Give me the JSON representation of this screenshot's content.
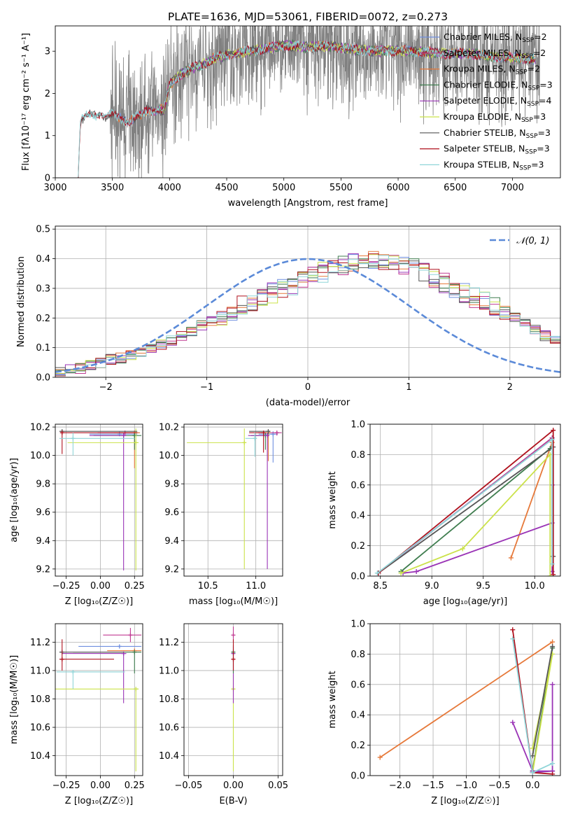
{
  "figure_title": "PLATE=1636, MJD=53061, FIBERID=0072, z=0.273",
  "colors": {
    "chabrier_miles": "#6f8fe0",
    "salpeter_miles": "#c03a92",
    "kroupa_miles": "#e6793a",
    "chabrier_elodie": "#3f7d4f",
    "salpeter_elodie": "#9a34b6",
    "kroupa_elodie": "#cbe24a",
    "chabrier_stelib": "#555555",
    "salpeter_stelib": "#b0121e",
    "kroupa_stelib": "#8fd5d8",
    "gaussian": "#5b8ad8",
    "data": "#808080",
    "grid": "#b0b0b0"
  },
  "chart_data": [
    {
      "id": "spectrum",
      "type": "line",
      "title": "PLATE=1636, MJD=53061, FIBERID=0072, z=0.273",
      "xlabel": "wavelength [Angstrom, rest frame]",
      "ylabel": "Flux [fλ10⁻¹⁷ erg cm⁻² s⁻¹ A⁻¹]",
      "xlim": [
        3000,
        7420
      ],
      "ylim": [
        0,
        3.6
      ],
      "xticks": [
        3000,
        3500,
        4000,
        4500,
        5000,
        5500,
        6000,
        6500,
        7000
      ],
      "yticks": [
        0,
        1,
        2,
        3
      ],
      "grid": false,
      "legend_position": "top-right",
      "legend": [
        {
          "label": "Chabrier MILES, N",
          "sub": "SSP",
          "tail": "=2",
          "color_key": "chabrier_miles"
        },
        {
          "label": "Salpeter MILES, N",
          "sub": "SSP",
          "tail": "=2",
          "color_key": "salpeter_miles"
        },
        {
          "label": "Kroupa MILES, N",
          "sub": "SSP",
          "tail": "=2",
          "color_key": "kroupa_miles"
        },
        {
          "label": "Chabrier ELODIE, N",
          "sub": "SSP",
          "tail": "=3",
          "color_key": "chabrier_elodie"
        },
        {
          "label": "Salpeter ELODIE, N",
          "sub": "SSP",
          "tail": "=4",
          "color_key": "salpeter_elodie"
        },
        {
          "label": "Kroupa ELODIE, N",
          "sub": "SSP",
          "tail": "=3",
          "color_key": "kroupa_elodie"
        },
        {
          "label": "Chabrier STELIB, N",
          "sub": "SSP",
          "tail": "=3",
          "color_key": "chabrier_stelib"
        },
        {
          "label": "Salpeter STELIB, N",
          "sub": "SSP",
          "tail": "=3",
          "color_key": "salpeter_stelib"
        },
        {
          "label": "Kroupa STELIB, N",
          "sub": "SSP",
          "tail": "=3",
          "color_key": "kroupa_stelib"
        }
      ],
      "continuum": {
        "x": [
          3200,
          3220,
          3260,
          3300,
          3350,
          3400,
          3450,
          3500,
          3550,
          3600,
          3650,
          3700,
          3750,
          3800,
          3850,
          3900,
          3950,
          4000,
          4100,
          4200,
          4300,
          4400,
          4500,
          4600,
          4700,
          4800,
          4900,
          5000,
          5200,
          5400,
          5600,
          5800,
          6000,
          6200,
          6400,
          6600,
          6800,
          7000,
          7200
        ],
        "y": [
          0.0,
          1.35,
          1.45,
          1.5,
          1.48,
          1.52,
          1.45,
          1.5,
          1.42,
          1.38,
          1.35,
          1.45,
          1.45,
          1.6,
          1.6,
          1.62,
          1.6,
          2.2,
          2.45,
          2.6,
          2.7,
          2.85,
          2.9,
          2.95,
          3.0,
          3.05,
          3.1,
          3.15,
          3.1,
          3.12,
          3.05,
          3.0,
          3.02,
          2.98,
          2.95,
          2.95,
          2.88,
          2.85,
          2.8
        ]
      },
      "data_noise_start": 3480,
      "data_noise_amplitude": 1.4
    },
    {
      "id": "residuals",
      "type": "line",
      "xlabel": "(data-model)/error",
      "ylabel": "Normed distribution",
      "xlim": [
        -2.5,
        2.5
      ],
      "ylim": [
        0,
        0.51
      ],
      "xticks": [
        -2,
        -1,
        0,
        1,
        2
      ],
      "yticks": [
        0.0,
        0.1,
        0.2,
        0.3,
        0.4,
        0.5
      ],
      "grid": true,
      "legend_position": "top-right",
      "legend": [
        {
          "label": "𝒩(0, 1)",
          "color_key": "gaussian"
        }
      ],
      "gaussian": {
        "mean": 0,
        "sigma": 1
      },
      "histogram": {
        "bin_width": 0.1,
        "x_start": -2.5,
        "base_values": [
          0.018,
          0.025,
          0.03,
          0.04,
          0.048,
          0.06,
          0.065,
          0.075,
          0.085,
          0.095,
          0.11,
          0.125,
          0.14,
          0.155,
          0.175,
          0.19,
          0.21,
          0.225,
          0.24,
          0.255,
          0.265,
          0.285,
          0.3,
          0.31,
          0.33,
          0.34,
          0.355,
          0.37,
          0.375,
          0.39,
          0.4,
          0.395,
          0.39,
          0.385,
          0.38,
          0.37,
          0.35,
          0.335,
          0.32,
          0.3,
          0.285,
          0.27,
          0.255,
          0.235,
          0.215,
          0.2,
          0.18,
          0.16,
          0.14,
          0.125
        ]
      }
    },
    {
      "id": "age_vs_Z",
      "type": "scatter",
      "xlabel": "Z [log₁₀(Z/Z☉)]",
      "ylabel": "age  [log₁₀(age/yr)]",
      "xlim": [
        -0.33,
        0.31
      ],
      "ylim": [
        9.15,
        10.22
      ],
      "xticks": [
        -0.25,
        0.0,
        0.25
      ],
      "xtick_labels": [
        "−0.25",
        "0.00",
        "0.25"
      ],
      "yticks": [
        9.2,
        9.4,
        9.6,
        9.8,
        10.0,
        10.2
      ],
      "grid": true,
      "points": [
        {
          "k": "chabrier_miles",
          "x": 0.14,
          "y": 10.15,
          "xl": 0.22,
          "xh": 0.13,
          "yl": 0.0,
          "yh": 0.02
        },
        {
          "k": "salpeter_miles",
          "x": 0.18,
          "y": 10.16,
          "xl": 0.2,
          "xh": 0.1,
          "yl": 0.0,
          "yh": 0.01
        },
        {
          "k": "kroupa_miles",
          "x": 0.25,
          "y": 10.16,
          "xl": 0.15,
          "xh": 0.04,
          "yl": 0.25,
          "yh": 0.01
        },
        {
          "k": "chabrier_elodie",
          "x": 0.25,
          "y": 10.14,
          "xl": 0.3,
          "xh": 0.05,
          "yl": 0.1,
          "yh": 0.02
        },
        {
          "k": "salpeter_elodie",
          "x": 0.17,
          "y": 10.14,
          "xl": 0.25,
          "xh": 0.02,
          "yl": 0.95,
          "yh": 0.02
        },
        {
          "k": "kroupa_elodie",
          "x": 0.26,
          "y": 10.09,
          "xl": 0.5,
          "xh": 0.02,
          "yl": 0.9,
          "yh": 0.1
        },
        {
          "k": "chabrier_stelib",
          "x": -0.28,
          "y": 10.17,
          "xl": 0.02,
          "xh": 0.55,
          "yl": 0.02,
          "yh": 0.01
        },
        {
          "k": "salpeter_stelib",
          "x": -0.28,
          "y": 10.16,
          "xl": 0.01,
          "xh": 0.55,
          "yl": 0.15,
          "yh": 0.01
        },
        {
          "k": "kroupa_stelib",
          "x": -0.2,
          "y": 10.12,
          "xl": 0.1,
          "xh": 0.45,
          "yl": 0.12,
          "yh": 0.04
        }
      ]
    },
    {
      "id": "age_vs_mass",
      "type": "scatter",
      "xlabel": "mass [log₁₀(M/M☉)]",
      "xlim": [
        10.25,
        11.28
      ],
      "ylim": [
        9.15,
        10.22
      ],
      "xticks": [
        10.5,
        11.0
      ],
      "xtick_labels": [
        "10.5",
        "11.0"
      ],
      "yticks": [
        9.2,
        9.4,
        9.6,
        9.8,
        10.0,
        10.2
      ],
      "grid": true,
      "points": [
        {
          "k": "chabrier_miles",
          "x": 11.18,
          "y": 10.15,
          "xl": 0.15,
          "xh": 0.05,
          "yl": 0.2,
          "yh": 0.02
        },
        {
          "k": "salpeter_miles",
          "x": 11.22,
          "y": 10.16,
          "xl": 0.2,
          "xh": 0.05,
          "yl": 0.02,
          "yh": 0.01
        },
        {
          "k": "kroupa_miles",
          "x": 11.13,
          "y": 10.16,
          "xl": 0.1,
          "xh": 0.02,
          "yl": 0.2,
          "yh": 0.01
        },
        {
          "k": "chabrier_elodie",
          "x": 11.1,
          "y": 10.14,
          "xl": 0.15,
          "xh": 0.03,
          "yl": 0.1,
          "yh": 0.02
        },
        {
          "k": "salpeter_elodie",
          "x": 11.12,
          "y": 10.14,
          "xl": 0.2,
          "xh": 0.02,
          "yl": 0.94,
          "yh": 0.02
        },
        {
          "k": "kroupa_elodie",
          "x": 10.88,
          "y": 10.09,
          "xl": 0.6,
          "xh": 0.02,
          "yl": 0.89,
          "yh": 0.1
        },
        {
          "k": "chabrier_stelib",
          "x": 11.13,
          "y": 10.17,
          "xl": 0.2,
          "xh": 0.02,
          "yl": 0.02,
          "yh": 0.01
        },
        {
          "k": "salpeter_stelib",
          "x": 11.08,
          "y": 10.16,
          "xl": 0.15,
          "xh": 0.01,
          "yl": 0.14,
          "yh": 0.01
        },
        {
          "k": "kroupa_stelib",
          "x": 10.99,
          "y": 10.12,
          "xl": 0.1,
          "xh": 0.02,
          "yl": 0.13,
          "yh": 0.04
        }
      ]
    },
    {
      "id": "weight_vs_age",
      "type": "line",
      "xlabel": "age  [log₁₀(age/yr)]",
      "ylabel": "mass weight",
      "xlim": [
        8.4,
        10.25
      ],
      "ylim": [
        0,
        1.0
      ],
      "xticks": [
        8.5,
        9.0,
        9.5,
        10.0
      ],
      "xtick_labels": [
        "8.5",
        "9.0",
        "9.5",
        "10.0"
      ],
      "yticks": [
        0.0,
        0.2,
        0.4,
        0.6,
        0.8,
        1.0
      ],
      "grid": true,
      "series": [
        {
          "k": "kroupa_miles",
          "x": [
            9.77,
            10.17
          ],
          "y": [
            0.12,
            0.88
          ]
        },
        {
          "k": "chabrier_miles",
          "x": [
            8.48,
            10.17
          ],
          "y": [
            0.02,
            0.91
          ]
        },
        {
          "k": "salpeter_miles",
          "x": [
            8.48,
            10.17
          ],
          "y": [
            0.02,
            0.91
          ]
        },
        {
          "k": "chabrier_elodie",
          "x": [
            8.7,
            10.15
          ],
          "y": [
            0.03,
            0.84
          ]
        },
        {
          "k": "salpeter_elodie",
          "x": [
            8.72,
            8.85,
            10.17,
            10.17,
            10.17
          ],
          "y": [
            0.02,
            0.03,
            0.35,
            0.6,
            0.03
          ]
        },
        {
          "k": "kroupa_elodie",
          "x": [
            8.7,
            9.3,
            10.15,
            10.15
          ],
          "y": [
            0.02,
            0.18,
            0.8,
            0.0
          ]
        },
        {
          "k": "chabrier_stelib",
          "x": [
            8.48,
            10.18,
            10.18
          ],
          "y": [
            0.02,
            0.85,
            0.13
          ]
        },
        {
          "k": "salpeter_stelib",
          "x": [
            8.48,
            10.18,
            10.18
          ],
          "y": [
            0.02,
            0.96,
            0.01
          ]
        },
        {
          "k": "kroupa_stelib",
          "x": [
            8.47,
            10.17,
            10.17
          ],
          "y": [
            0.02,
            0.9,
            0.08
          ]
        }
      ]
    },
    {
      "id": "mass_vs_Z",
      "type": "scatter",
      "xlabel": "Z [log₁₀(Z/Z☉)]",
      "ylabel": "mass [log₁₀(M/M☉)]",
      "xlim": [
        -0.33,
        0.31
      ],
      "ylim": [
        10.26,
        11.33
      ],
      "xticks": [
        -0.25,
        0.0,
        0.25
      ],
      "xtick_labels": [
        "−0.25",
        "0.00",
        "0.25"
      ],
      "yticks": [
        10.4,
        10.6,
        10.8,
        11.0,
        11.2
      ],
      "grid": true,
      "points": [
        {
          "k": "chabrier_miles",
          "x": 0.14,
          "y": 11.17,
          "xl": 0.3,
          "xh": 0.16,
          "yl": 0.0,
          "yh": 0.0
        },
        {
          "k": "salpeter_miles",
          "x": 0.22,
          "y": 11.25,
          "xl": 0.2,
          "xh": 0.08,
          "yl": 0.05,
          "yh": 0.05
        },
        {
          "k": "kroupa_miles",
          "x": 0.25,
          "y": 11.14,
          "xl": 0.2,
          "xh": 0.05,
          "yl": 0.0,
          "yh": 0.0
        },
        {
          "k": "chabrier_elodie",
          "x": 0.25,
          "y": 11.13,
          "xl": 0.45,
          "xh": 0.05,
          "yl": 0.15,
          "yh": 0.0
        },
        {
          "k": "salpeter_elodie",
          "x": 0.17,
          "y": 11.12,
          "xl": 0.45,
          "xh": 0.02,
          "yl": 0.35,
          "yh": 0.0
        },
        {
          "k": "kroupa_elodie",
          "x": 0.26,
          "y": 10.87,
          "xl": 0.6,
          "xh": 0.02,
          "yl": 0.58,
          "yh": 0.0
        },
        {
          "k": "chabrier_stelib",
          "x": -0.28,
          "y": 11.13,
          "xl": 0.02,
          "xh": 0.45,
          "yl": 0.0,
          "yh": 0.0
        },
        {
          "k": "salpeter_stelib",
          "x": -0.28,
          "y": 11.08,
          "xl": 0.02,
          "xh": 0.38,
          "yl": 0.08,
          "yh": 0.14
        },
        {
          "k": "kroupa_stelib",
          "x": -0.2,
          "y": 10.99,
          "xl": 0.12,
          "xh": 0.38,
          "yl": 0.12,
          "yh": 0.0
        }
      ]
    },
    {
      "id": "mass_vs_ebv",
      "type": "scatter",
      "xlabel": "E(B-V)",
      "xlim": [
        -0.055,
        0.055
      ],
      "ylim": [
        10.26,
        11.33
      ],
      "xticks": [
        -0.05,
        0.0,
        0.05
      ],
      "xtick_labels": [
        "−0.05",
        "0.00",
        "0.05"
      ],
      "yticks": [
        10.4,
        10.6,
        10.8,
        11.0,
        11.2
      ],
      "grid": true,
      "points": [
        {
          "k": "kroupa_elodie",
          "x": 0.0,
          "y": 10.87,
          "xl": 0,
          "xh": 0,
          "yl": 0.58,
          "yh": 0.1
        },
        {
          "k": "salpeter_miles",
          "x": 0.0,
          "y": 11.25,
          "xl": 0,
          "xh": 0,
          "yl": 0.05,
          "yh": 0.06
        },
        {
          "k": "salpeter_elodie",
          "x": 0.0,
          "y": 11.12,
          "xl": 0,
          "xh": 0,
          "yl": 0.35,
          "yh": 0.05
        },
        {
          "k": "chabrier_elodie",
          "x": 0.0,
          "y": 11.13,
          "xl": 0,
          "xh": 0,
          "yl": 0.15,
          "yh": 0.05
        },
        {
          "k": "salpeter_stelib",
          "x": 0.0,
          "y": 11.08,
          "xl": 0,
          "xh": 0,
          "yl": 0.08,
          "yh": 0.14
        }
      ]
    },
    {
      "id": "weight_vs_Z",
      "type": "line",
      "xlabel": "Z [log₁₀(Z/Z☉)]",
      "ylabel": "mass weight",
      "xlim": [
        -2.45,
        0.42
      ],
      "ylim": [
        0,
        1.0
      ],
      "xticks": [
        -2.0,
        -1.5,
        -1.0,
        -0.5,
        0.0
      ],
      "xtick_labels": [
        "−2.0",
        "−1.5",
        "−1.0",
        "−0.5",
        "0.0"
      ],
      "yticks": [
        0.0,
        0.2,
        0.4,
        0.6,
        0.8,
        1.0
      ],
      "grid": true,
      "series": [
        {
          "k": "kroupa_miles",
          "x": [
            -2.3,
            0.3
          ],
          "y": [
            0.12,
            0.88
          ]
        },
        {
          "k": "chabrier_elodie",
          "x": [
            0.0,
            0.3
          ],
          "y": [
            0.03,
            0.84
          ]
        },
        {
          "k": "kroupa_elodie",
          "x": [
            0.0,
            0.3,
            0.0
          ],
          "y": [
            0.18,
            0.8,
            0.02
          ]
        },
        {
          "k": "salpeter_elodie",
          "x": [
            -0.3,
            0.0,
            0.3,
            0.3,
            0.3,
            0.0
          ],
          "y": [
            0.35,
            0.03,
            0.03,
            0.6,
            0.03,
            0.02
          ]
        },
        {
          "k": "salpeter_stelib",
          "x": [
            -0.3,
            0.0,
            0.3
          ],
          "y": [
            0.96,
            0.02,
            0.01
          ]
        },
        {
          "k": "chabrier_stelib",
          "x": [
            0.3,
            0.0
          ],
          "y": [
            0.85,
            0.13
          ]
        },
        {
          "k": "kroupa_stelib",
          "x": [
            -0.3,
            0.0,
            0.3
          ],
          "y": [
            0.9,
            0.02,
            0.08
          ]
        }
      ]
    }
  ]
}
